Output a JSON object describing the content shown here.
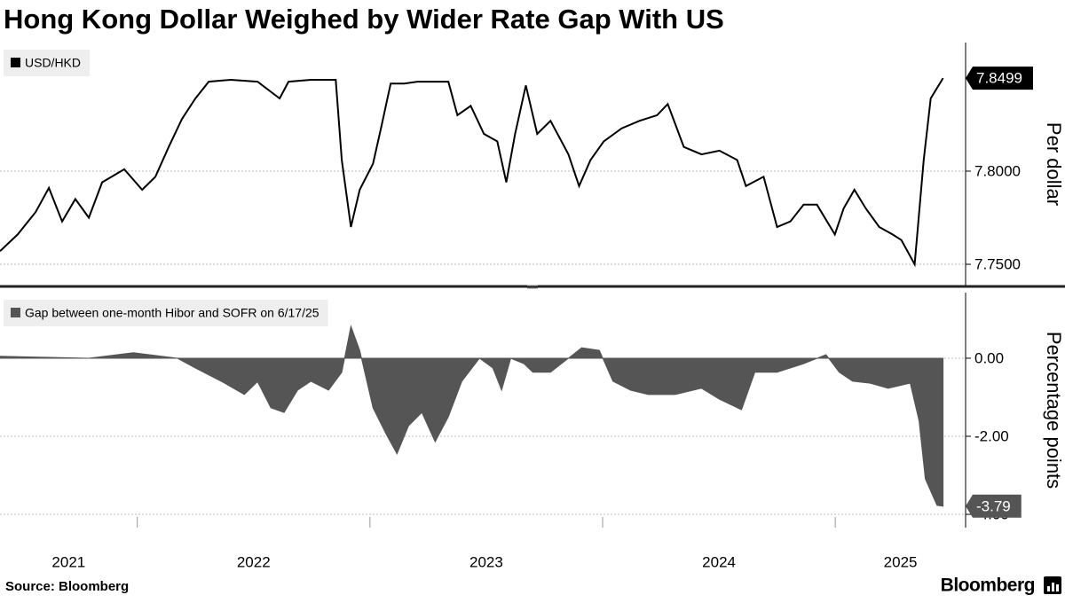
{
  "title": "Hong Kong Dollar Weighed by Wider Rate Gap With US",
  "source": "Source: Bloomberg",
  "logo": "Bloomberg",
  "chart_data": [
    {
      "type": "line",
      "x": [
        2021.41,
        2021.486,
        2021.563,
        2021.62,
        2021.677,
        2021.734,
        2021.792,
        2021.849,
        2021.944,
        2022.021,
        2022.078,
        2022.135,
        2022.192,
        2022.25,
        2022.307,
        2022.402,
        2022.517,
        2022.612,
        2022.65,
        2022.746,
        2022.853,
        2022.879,
        2022.918,
        2022.956,
        2023.013,
        2023.051,
        2023.089,
        2023.147,
        2023.204,
        2023.337,
        2023.376,
        2023.433,
        2023.49,
        2023.547,
        2023.586,
        2023.624,
        2023.67,
        2023.719,
        2023.776,
        2023.853,
        2023.899,
        2023.948,
        2024.005,
        2024.082,
        2024.158,
        2024.234,
        2024.28,
        2024.349,
        2024.425,
        2024.502,
        2024.578,
        2024.616,
        2024.692,
        2024.75,
        2024.807,
        2024.864,
        2024.921,
        2024.998,
        2025.036,
        2025.082,
        2025.131,
        2025.189,
        2025.246,
        2025.284,
        2025.341,
        2025.38,
        2025.41,
        2025.463
      ],
      "series": [
        {
          "name": "USD/HKD",
          "color": "#000000",
          "values": [
            7.757,
            7.766,
            7.778,
            7.791,
            7.773,
            7.785,
            7.775,
            7.794,
            7.801,
            7.79,
            7.797,
            7.813,
            7.828,
            7.839,
            7.848,
            7.849,
            7.848,
            7.839,
            7.848,
            7.849,
            7.849,
            7.806,
            7.77,
            7.79,
            7.804,
            7.825,
            7.847,
            7.847,
            7.848,
            7.848,
            7.83,
            7.835,
            7.82,
            7.816,
            7.794,
            7.82,
            7.846,
            7.82,
            7.827,
            7.809,
            7.792,
            7.806,
            7.816,
            7.823,
            7.827,
            7.83,
            7.836,
            7.813,
            7.809,
            7.811,
            7.806,
            7.792,
            7.797,
            7.77,
            7.773,
            7.782,
            7.782,
            7.766,
            7.78,
            7.79,
            7.78,
            7.77,
            7.766,
            7.763,
            7.75,
            7.806,
            7.839,
            7.8499
          ]
        }
      ],
      "xlim": [
        2021.41,
        2025.56
      ],
      "ylim": [
        7.7386,
        7.869
      ],
      "yticks": [
        {
          "value": 7.75,
          "label": "7.7500"
        },
        {
          "value": 7.8,
          "label": "7.8000"
        }
      ],
      "y_label": "Per dollar",
      "grid": true,
      "legend": "top-left"
    },
    {
      "type": "area",
      "x": [
        2021.41,
        2021.792,
        2021.983,
        2022.173,
        2022.25,
        2022.364,
        2022.46,
        2022.517,
        2022.574,
        2022.631,
        2022.689,
        2022.746,
        2022.822,
        2022.879,
        2022.918,
        2022.956,
        2023.013,
        2023.07,
        2023.116,
        2023.166,
        2023.223,
        2023.28,
        2023.337,
        2023.395,
        2023.471,
        2023.528,
        2023.566,
        2023.605,
        2023.662,
        2023.7,
        2023.776,
        2023.853,
        2023.91,
        2023.986,
        2024.044,
        2024.12,
        2024.196,
        2024.311,
        2024.425,
        2024.502,
        2024.597,
        2024.654,
        2024.75,
        2024.864,
        2024.96,
        2025.017,
        2025.074,
        2025.15,
        2025.227,
        2025.322,
        2025.36,
        2025.387,
        2025.437,
        2025.463
      ],
      "series": [
        {
          "name": "Gap between one-month Hibor and SOFR on 6/17/25",
          "color": "#555555",
          "values": [
            0.05,
            0,
            0.14,
            0,
            -0.25,
            -0.6,
            -0.93,
            -0.6,
            -1.27,
            -1.39,
            -0.82,
            -0.59,
            -0.82,
            -0.36,
            0.82,
            0.2,
            -1.27,
            -1.95,
            -2.45,
            -1.73,
            -1.39,
            -2.14,
            -1.5,
            -0.59,
            0,
            -0.25,
            -0.82,
            0,
            -0.14,
            -0.36,
            -0.36,
            0,
            0.27,
            0.2,
            -0.59,
            -0.82,
            -0.93,
            -0.93,
            -0.77,
            -1.05,
            -1.32,
            -0.36,
            -0.36,
            -0.14,
            0.09,
            -0.36,
            -0.59,
            -0.64,
            -0.77,
            -0.64,
            -1.61,
            -3.09,
            -3.77,
            -3.79
          ]
        }
      ],
      "xlim": [
        2021.41,
        2025.56
      ],
      "xticks": [
        2021,
        2022,
        2023,
        2024,
        2025
      ],
      "ylim": [
        -4.34,
        1.68
      ],
      "yticks": [
        {
          "value": 0,
          "label": "0.00"
        },
        {
          "value": -2,
          "label": "-2.00"
        },
        {
          "value": -4,
          "label": "-4.00"
        }
      ],
      "y_label": "Percentage points",
      "grid": true,
      "legend": "top-left"
    }
  ]
}
